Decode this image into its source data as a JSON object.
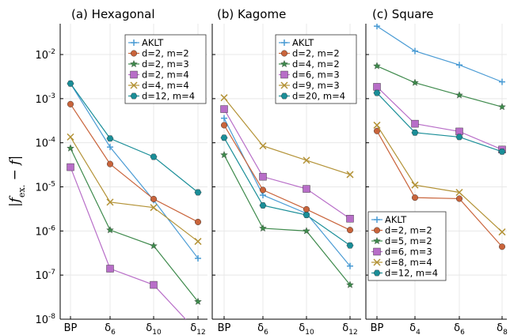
{
  "y_axis_label": "|f_ex. − f|",
  "y_axis_label_parts": {
    "bar": "|",
    "f": "f",
    "sub": "ex.",
    "minus": " − ",
    "f2": "f",
    "bar2": "|"
  },
  "colors": {
    "AKLT": "#4a9bd4",
    "s1": "#c9643b",
    "s2": "#3e8a4c",
    "s3": "#b86ec8",
    "s4": "#b39236",
    "s5": "#1a8e98"
  },
  "chart_data": [
    {
      "type": "line",
      "title": "(a) Hexagonal",
      "yscale": "log",
      "ylim": [
        1e-08,
        0.05
      ],
      "ytick_labels": [
        "10^-8",
        "10^-7",
        "10^-6",
        "10^-5",
        "10^-4",
        "10^-3",
        "10^-2"
      ],
      "categories": [
        "BP",
        "δ6",
        "δ10",
        "δ12"
      ],
      "category_parts": [
        [
          "BP",
          ""
        ],
        [
          "δ",
          "6"
        ],
        [
          "δ",
          "10"
        ],
        [
          "δ",
          "12"
        ]
      ],
      "legend_position": "top-right",
      "series": [
        {
          "name": "AKLT",
          "marker": "plus",
          "values": [
            0.0022,
            8e-05,
            5e-06,
            2.4e-07
          ]
        },
        {
          "name": "d=2, m=2",
          "marker": "circle",
          "values": [
            0.00075,
            3.3e-05,
            5.3e-06,
            1.6e-06
          ]
        },
        {
          "name": "d=2, m=3",
          "marker": "star",
          "values": [
            7.5e-05,
            1.05e-06,
            4.6e-07,
            2.5e-08
          ]
        },
        {
          "name": "d=2, m=4",
          "marker": "square",
          "values": [
            2.8e-05,
            1.4e-07,
            6e-08,
            5e-09
          ]
        },
        {
          "name": "d=4, m=4",
          "marker": "cross",
          "values": [
            0.000135,
            4.5e-06,
            3.4e-06,
            5.8e-07
          ]
        },
        {
          "name": "d=12, m=4",
          "marker": "hexagon",
          "values": [
            0.0022,
            0.000125,
            4.8e-05,
            7.5e-06
          ]
        }
      ]
    },
    {
      "type": "line",
      "title": "(b) Kagome",
      "yscale": "log",
      "ylim": [
        1e-08,
        0.05
      ],
      "categories": [
        "BP",
        "δ6",
        "δ10",
        "δ12"
      ],
      "category_parts": [
        [
          "BP",
          ""
        ],
        [
          "δ",
          "6"
        ],
        [
          "δ",
          "10"
        ],
        [
          "δ",
          "12"
        ]
      ],
      "legend_position": "top-right",
      "series": [
        {
          "name": "AKLT",
          "marker": "plus",
          "values": [
            0.00036,
            6.5e-06,
            2.5e-06,
            1.6e-07
          ]
        },
        {
          "name": "d=2, m=2",
          "marker": "circle",
          "values": [
            0.00025,
            8.5e-06,
            3.1e-06,
            1.05e-06
          ]
        },
        {
          "name": "d=4, m=2",
          "marker": "star",
          "values": [
            5.3e-05,
            1.15e-06,
            1e-06,
            6e-08
          ]
        },
        {
          "name": "d=6, m=3",
          "marker": "square",
          "values": [
            0.00058,
            1.7e-05,
            9e-06,
            1.9e-06
          ]
        },
        {
          "name": "d=9, m=3",
          "marker": "cross",
          "values": [
            0.00105,
            8.5e-05,
            4e-05,
            1.9e-05
          ]
        },
        {
          "name": "d=20, m=4",
          "marker": "hexagon",
          "values": [
            0.00013,
            3.8e-06,
            2.3e-06,
            4.7e-07
          ]
        }
      ]
    },
    {
      "type": "line",
      "title": "(c) Square",
      "yscale": "log",
      "ylim": [
        1e-08,
        0.05
      ],
      "categories": [
        "BP",
        "δ4",
        "δ6",
        "δ8"
      ],
      "category_parts": [
        [
          "BP",
          ""
        ],
        [
          "δ",
          "4"
        ],
        [
          "δ",
          "6"
        ],
        [
          "δ",
          "8"
        ]
      ],
      "legend_position": "bottom-left",
      "series": [
        {
          "name": "AKLT",
          "marker": "plus",
          "values": [
            0.044,
            0.012,
            0.0058,
            0.0024
          ]
        },
        {
          "name": "d=2, m=2",
          "marker": "circle",
          "values": [
            0.000185,
            5.7e-06,
            5.4e-06,
            4.4e-07
          ]
        },
        {
          "name": "d=5, m=2",
          "marker": "star",
          "values": [
            0.0055,
            0.0023,
            0.0012,
            0.00065
          ]
        },
        {
          "name": "d=6, m=3",
          "marker": "square",
          "values": [
            0.00185,
            0.00027,
            0.00018,
            7e-05
          ]
        },
        {
          "name": "d=8, m=4",
          "marker": "cross",
          "values": [
            0.00025,
            1.1e-05,
            7.5e-06,
            9.5e-07
          ]
        },
        {
          "name": "d=12, m=4",
          "marker": "hexagon",
          "values": [
            0.00135,
            0.00017,
            0.000135,
            6.3e-05
          ]
        }
      ]
    }
  ]
}
